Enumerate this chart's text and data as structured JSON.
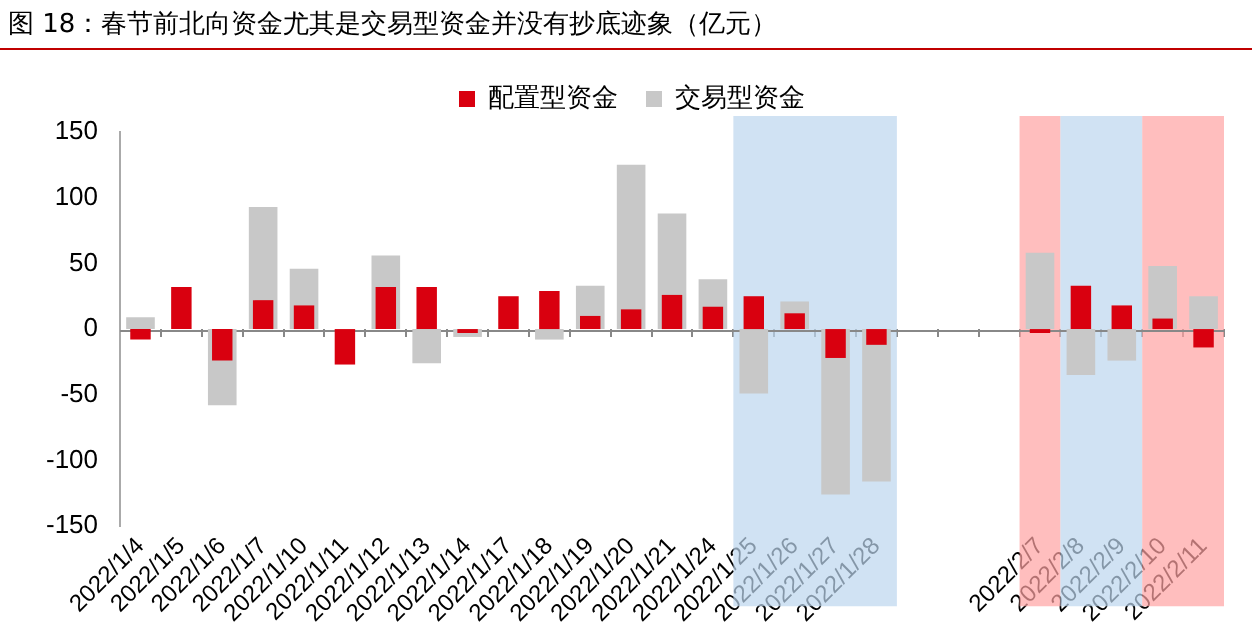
{
  "chart_data": {
    "type": "bar",
    "title": "图 18：春节前北向资金尤其是交易型资金并没有抄底迹象（亿元）",
    "categories": [
      "2022/1/4",
      "2022/1/5",
      "2022/1/6",
      "2022/1/7",
      "2022/1/10",
      "2022/1/11",
      "2022/1/12",
      "2022/1/13",
      "2022/1/14",
      "2022/1/17",
      "2022/1/18",
      "2022/1/19",
      "2022/1/20",
      "2022/1/21",
      "2022/1/24",
      "2022/1/25",
      "2022/1/26",
      "2022/1/27",
      "2022/1/28",
      null,
      null,
      null,
      "2022/2/7",
      "2022/2/8",
      "2022/2/9",
      "2022/2/10",
      "2022/2/11"
    ],
    "series": [
      {
        "name": "配置型资金",
        "color": "#d9000f",
        "values": [
          -8,
          32,
          -24,
          22,
          18,
          -27,
          32,
          32,
          -3,
          25,
          29,
          10,
          15,
          26,
          17,
          25,
          12,
          -22,
          -12,
          null,
          null,
          null,
          -3,
          33,
          18,
          8,
          -14
        ]
      },
      {
        "name": "交易型资金",
        "color": "#c8c8c8",
        "values": [
          9,
          0,
          -58,
          93,
          46,
          0,
          56,
          -26,
          -6,
          0,
          -8,
          33,
          125,
          88,
          38,
          -49,
          21,
          -126,
          -116,
          null,
          null,
          null,
          58,
          -35,
          -24,
          48,
          25
        ]
      }
    ],
    "ref_lines": [
      {
        "axis": "y",
        "value": 0,
        "color": "#888888"
      }
    ],
    "ylim": [
      -150,
      150
    ],
    "yticks": [
      -150,
      -100,
      -50,
      0,
      50,
      100,
      150
    ],
    "grid": false,
    "legend": "top",
    "bands": [
      {
        "axis": "x",
        "from": "2022/1/25",
        "to": "2022/1/28",
        "color": "#bcd5ee"
      },
      {
        "axis": "x",
        "from": "2022/2/7",
        "to": "2022/2/7",
        "color": "#ffa3a3"
      },
      {
        "axis": "x",
        "from": "2022/2/8",
        "to": "2022/2/9",
        "color": "#bcd5ee"
      },
      {
        "axis": "x",
        "from": "2022/2/10",
        "to": "2022/2/11",
        "color": "#ffa3a3"
      }
    ]
  }
}
